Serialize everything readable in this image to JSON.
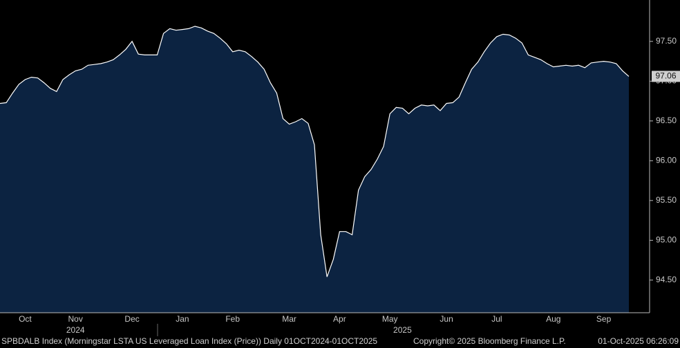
{
  "chart_data": {
    "type": "area",
    "color": "#0c2341",
    "line_color": "#ffffff",
    "categories": [
      null,
      null,
      null,
      null,
      "Oct",
      null,
      null,
      null,
      null,
      null,
      null,
      null,
      "Nov",
      null,
      null,
      null,
      null,
      null,
      null,
      null,
      null,
      "Dec",
      null,
      null,
      null,
      null,
      null,
      null,
      null,
      "Jan",
      null,
      null,
      null,
      null,
      null,
      null,
      null,
      "Feb",
      null,
      null,
      null,
      null,
      null,
      null,
      null,
      null,
      "Mar",
      null,
      null,
      null,
      null,
      null,
      null,
      null,
      "Apr",
      null,
      null,
      null,
      null,
      null,
      null,
      null,
      "May",
      null,
      null,
      null,
      null,
      null,
      null,
      null,
      null,
      "Jun",
      null,
      null,
      null,
      null,
      null,
      null,
      null,
      "Jul",
      null,
      null,
      null,
      null,
      null,
      null,
      null,
      null,
      "Aug",
      null,
      null,
      null,
      null,
      null,
      null,
      null,
      "Sep",
      null,
      null,
      null,
      null
    ],
    "year_categories": [
      null,
      null,
      null,
      null,
      null,
      null,
      null,
      null,
      null,
      null,
      null,
      null,
      "2024",
      null,
      null,
      null,
      null,
      null,
      null,
      null,
      null,
      null,
      null,
      null,
      null,
      null,
      null,
      null,
      null,
      null,
      null,
      null,
      null,
      null,
      null,
      null,
      null,
      null,
      null,
      null,
      null,
      null,
      null,
      null,
      null,
      null,
      null,
      null,
      null,
      null,
      null,
      null,
      null,
      null,
      null,
      null,
      null,
      null,
      null,
      null,
      null,
      null,
      null,
      null,
      "2025",
      null,
      null,
      null,
      null,
      null,
      null,
      null,
      null,
      null,
      null,
      null,
      null,
      null,
      null,
      null,
      null,
      null,
      null,
      null,
      null,
      null,
      null,
      null,
      null,
      null,
      null,
      null,
      null,
      null,
      null,
      null,
      null,
      null,
      null,
      null,
      null
    ],
    "values": [
      96.72,
      96.73,
      96.85,
      96.96,
      97.02,
      97.05,
      97.04,
      96.98,
      96.91,
      96.87,
      97.02,
      97.08,
      97.13,
      97.15,
      97.2,
      97.21,
      97.22,
      97.24,
      97.27,
      97.33,
      97.4,
      97.5,
      97.34,
      97.33,
      97.33,
      97.33,
      97.6,
      97.66,
      97.64,
      97.65,
      97.66,
      97.69,
      97.67,
      97.63,
      97.6,
      97.54,
      97.47,
      97.37,
      97.39,
      97.37,
      97.31,
      97.24,
      97.15,
      96.98,
      96.85,
      96.53,
      96.46,
      96.49,
      96.53,
      96.47,
      96.2,
      95.07,
      94.54,
      94.76,
      95.11,
      95.11,
      95.07,
      95.63,
      95.8,
      95.89,
      96.02,
      96.18,
      96.59,
      96.67,
      96.66,
      96.59,
      96.66,
      96.7,
      96.69,
      96.7,
      96.63,
      96.72,
      96.73,
      96.8,
      96.98,
      97.15,
      97.24,
      97.37,
      97.48,
      97.56,
      97.59,
      97.58,
      97.54,
      97.48,
      97.33,
      97.3,
      97.27,
      97.22,
      97.18,
      97.19,
      97.2,
      97.19,
      97.2,
      97.17,
      97.23,
      97.24,
      97.25,
      97.24,
      97.22,
      97.13,
      97.06
    ],
    "ylim": [
      94.09,
      98.02
    ],
    "yticks": [
      {
        "value": 94.5,
        "label": "94.50"
      },
      {
        "value": 95,
        "label": "95.00"
      },
      {
        "value": 95.5,
        "label": "95.50"
      },
      {
        "value": 96,
        "label": "96.00"
      },
      {
        "value": 96.5,
        "label": "96.50"
      },
      {
        "value": 97,
        "label": "97.00"
      },
      {
        "value": 97.5,
        "label": "97.50"
      }
    ],
    "footer": "SPBDALB Index (Morningstar LSTA US Leveraged Loan Index (Price)) Daily 01OCT2024-01OCT2025",
    "copyright": "Copyright© 2025 Bloomberg Finance L.P.",
    "timestamp": "01-Oct-2025 06:26:09"
  }
}
